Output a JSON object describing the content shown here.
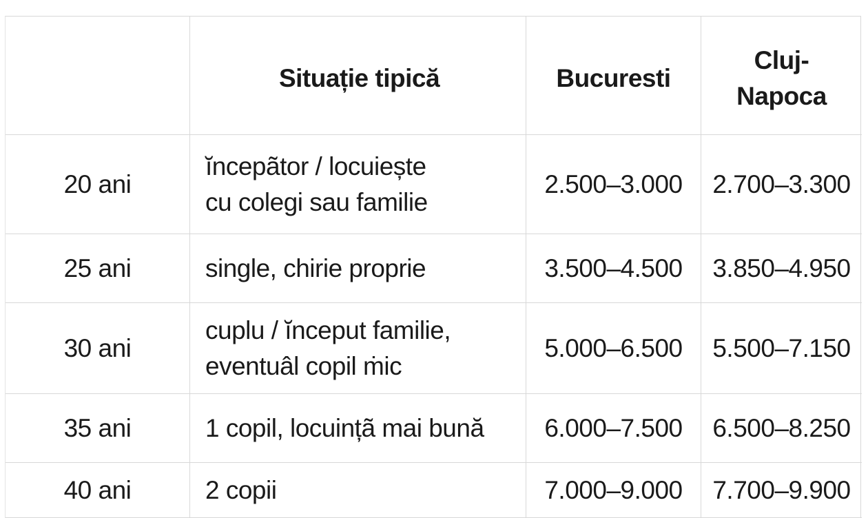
{
  "table": {
    "header": {
      "age": "",
      "situation": "Situație tipică",
      "bucuresti": "Bucuresti",
      "cluj_line1": "Cluj-",
      "cluj_line2": "Napoca"
    },
    "rows": [
      {
        "age": "20 ani",
        "situation_line1": "ĭncepãtor / locuiește",
        "situation_line2": "cu colegi sau familie",
        "bucuresti": "2.500–3.000",
        "cluj": "2.700–3.300"
      },
      {
        "age": "25 ani",
        "situation_line1": "single, chirie proprie",
        "situation_line2": "",
        "bucuresti": "3.500–4.500",
        "cluj": "3.850–4.950"
      },
      {
        "age": "30 ani",
        "situation_line1": "cuplu / ĭnceput familie,",
        "situation_line2": "eventuâl copil ṁic",
        "bucuresti": "5.000–6.500",
        "cluj": "5.500–7.150"
      },
      {
        "age": "35 ani",
        "situation_line1": "1 copil, locuințã mai bună",
        "situation_line2": "",
        "bucuresti": "6.000–7.500",
        "cluj": "6.500–8.250"
      },
      {
        "age": "40 ani",
        "situation_line1": "2 copii",
        "situation_line2": "",
        "bucuresti": "7.000–9.000",
        "cluj": "7.700–9.900"
      }
    ]
  },
  "colors": {
    "text": "#1a1a1a",
    "gridline": "#d8d8d8",
    "background": "#ffffff"
  }
}
